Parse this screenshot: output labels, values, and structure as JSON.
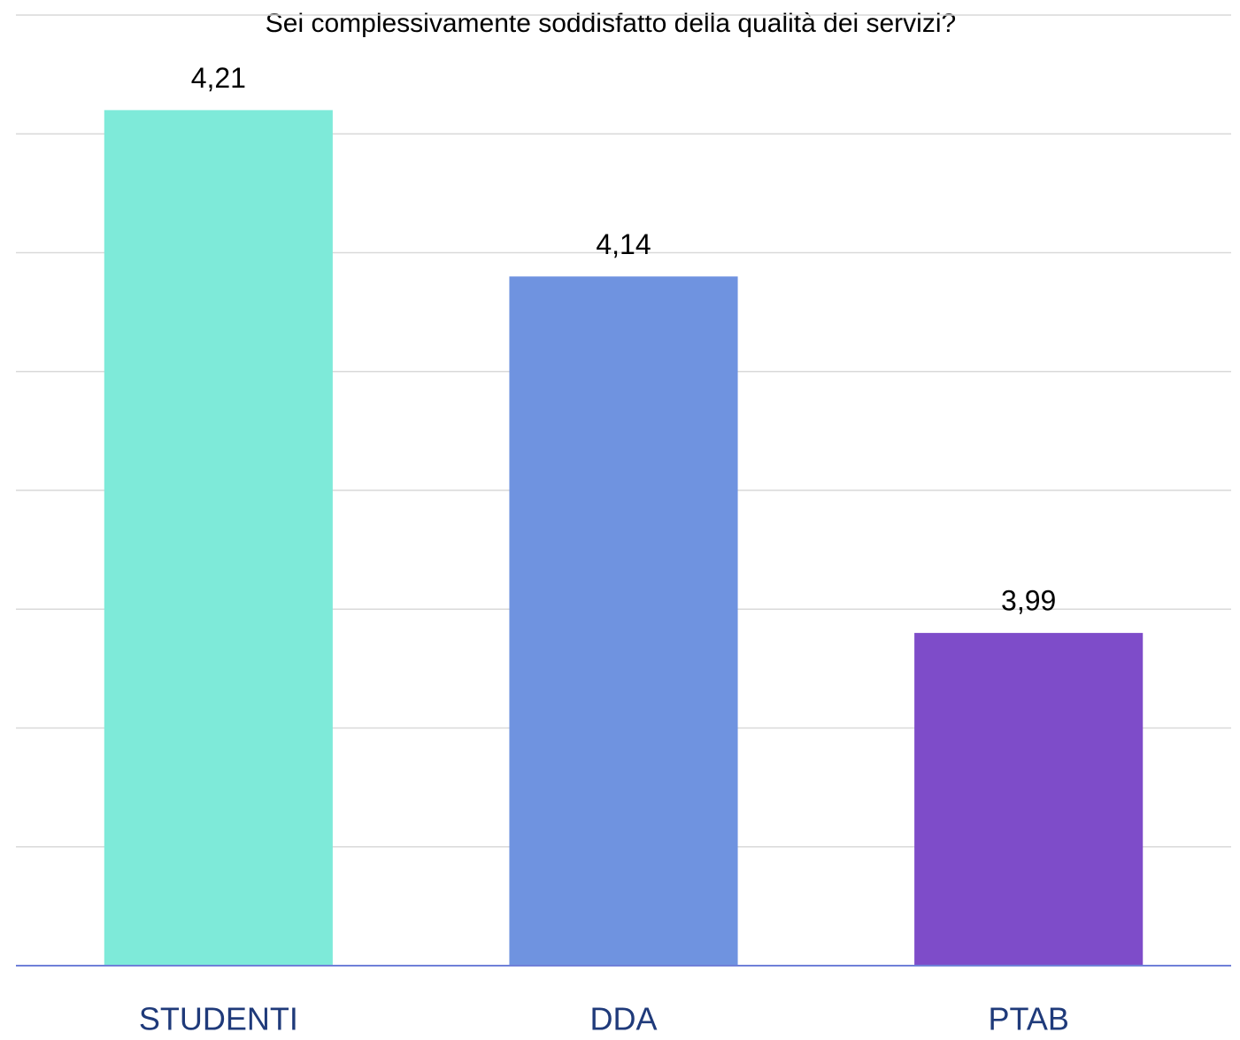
{
  "chart_data": {
    "type": "bar",
    "title": "Sei complessivamente soddisfatto della qualità dei servizi?",
    "categories": [
      "STUDENTI",
      "DDA",
      "PTAB"
    ],
    "values": [
      4.21,
      4.14,
      3.99
    ],
    "value_labels": [
      "4,21",
      "4,14",
      "3,99"
    ],
    "colors": [
      "#7eead9",
      "#6f93e0",
      "#7e4cc9"
    ],
    "ylim": [
      3.85,
      4.25
    ],
    "yticks": [
      3.85,
      3.9,
      3.95,
      4.0,
      4.05,
      4.1,
      4.15,
      4.2,
      4.25
    ],
    "grid": true,
    "grid_color": "#d9d9d9",
    "axis_color": "#6f80d8",
    "category_color": "#1f3a7a"
  }
}
